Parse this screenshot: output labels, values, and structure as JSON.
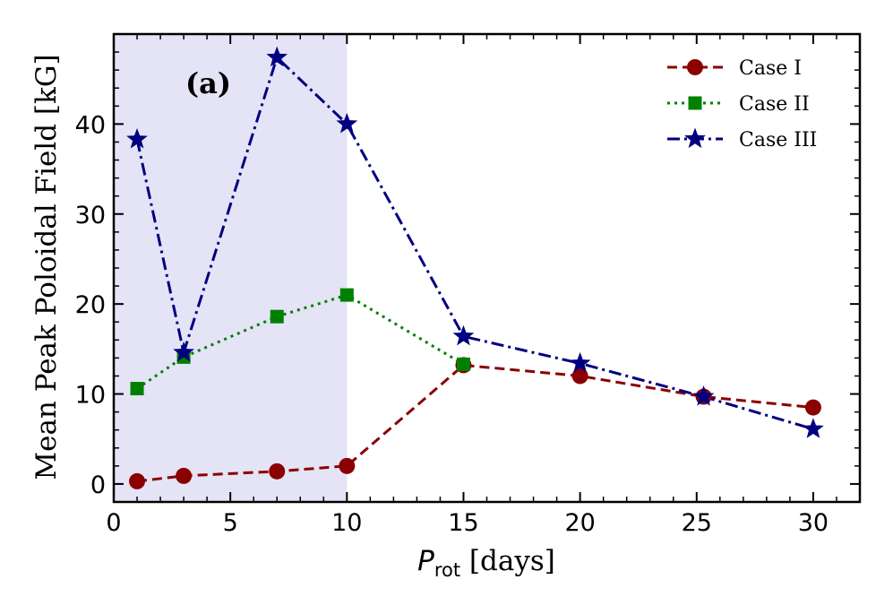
{
  "chart_data": {
    "type": "line",
    "panel_label": "(a)",
    "xlabel_symbol": "P",
    "xlabel_subscript": "rot",
    "xlabel_unit": " [days]",
    "ylabel": "Mean Peak Poloidal Field [kG]",
    "xlim": [
      0,
      32
    ],
    "ylim": [
      -2,
      50
    ],
    "xticks": [
      0,
      5,
      10,
      15,
      20,
      25,
      30
    ],
    "yticks": [
      0,
      10,
      20,
      30,
      40
    ],
    "shaded_region": {
      "x": [
        0,
        10
      ],
      "color": "#e4e4f6"
    },
    "legend_position": "top-right",
    "series": [
      {
        "name": "Case I",
        "color": "#8b0000",
        "marker": "circle",
        "linestyle": "dashed",
        "x": [
          1,
          3,
          7,
          10,
          15,
          20,
          25.3,
          30
        ],
        "y": [
          0.3,
          0.9,
          1.4,
          2.0,
          13.2,
          12.0,
          9.7,
          8.5
        ]
      },
      {
        "name": "Case II",
        "color": "#008000",
        "marker": "square",
        "linestyle": "dotted",
        "x": [
          1,
          3,
          7,
          10,
          15
        ],
        "y": [
          10.6,
          14.1,
          18.6,
          21.0,
          13.3
        ]
      },
      {
        "name": "Case III",
        "color": "#000080",
        "marker": "star",
        "linestyle": "dashdot",
        "x": [
          1,
          3,
          7,
          10,
          15,
          20,
          25.3,
          30
        ],
        "y": [
          38.3,
          14.6,
          47.4,
          40.0,
          16.4,
          13.4,
          9.7,
          6.1
        ]
      }
    ]
  }
}
